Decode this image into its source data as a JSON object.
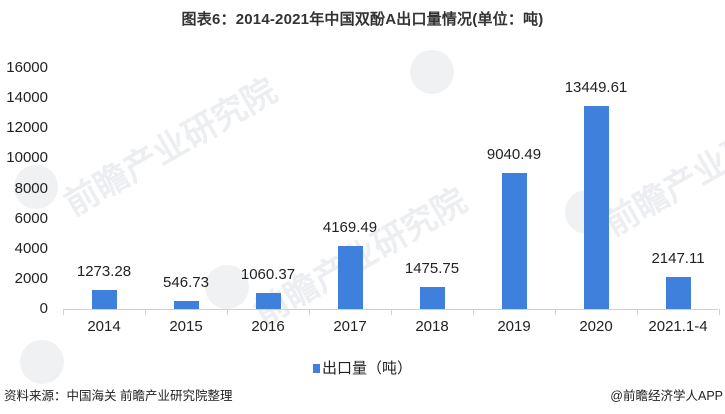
{
  "title": "图表6：2014-2021年中国双酚A出口量情况(单位：吨)",
  "legend": {
    "label": "出口量（吨）",
    "color": "#3f80dd"
  },
  "footer": {
    "source": "资料来源：中国海关 前瞻产业研究院整理",
    "credit": "@前瞻经济学人APP"
  },
  "watermark": {
    "text": "前瞻产业研究院"
  },
  "y_ticks": [
    "16000",
    "14000",
    "12000",
    "10000",
    "8000",
    "6000",
    "4000",
    "2000",
    "0"
  ],
  "bars": [
    {
      "category": "2014",
      "value": 1273.28,
      "label": "1273.28"
    },
    {
      "category": "2015",
      "value": 546.73,
      "label": "546.73"
    },
    {
      "category": "2016",
      "value": 1060.37,
      "label": "1060.37"
    },
    {
      "category": "2017",
      "value": 4169.49,
      "label": "4169.49"
    },
    {
      "category": "2018",
      "value": 1475.75,
      "label": "1475.75"
    },
    {
      "category": "2019",
      "value": 9040.49,
      "label": "9040.49"
    },
    {
      "category": "2020",
      "value": 13449.61,
      "label": "13449.61"
    },
    {
      "category": "2021.1-4",
      "value": 2147.11,
      "label": "2147.11"
    }
  ],
  "chart_data": {
    "type": "bar",
    "title": "图表6：2014-2021年中国双酚A出口量情况(单位：吨)",
    "categories": [
      "2014",
      "2015",
      "2016",
      "2017",
      "2018",
      "2019",
      "2020",
      "2021.1-4"
    ],
    "series": [
      {
        "name": "出口量（吨）",
        "values": [
          1273.28,
          546.73,
          1060.37,
          4169.49,
          1475.75,
          9040.49,
          13449.61,
          2147.11
        ],
        "color": "#3f80dd"
      }
    ],
    "xlabel": "",
    "ylabel": "",
    "ylim": [
      0,
      16000
    ],
    "yticks": [
      0,
      2000,
      4000,
      6000,
      8000,
      10000,
      12000,
      14000,
      16000
    ],
    "grid": false,
    "data_labels": true,
    "legend_position": "bottom"
  }
}
